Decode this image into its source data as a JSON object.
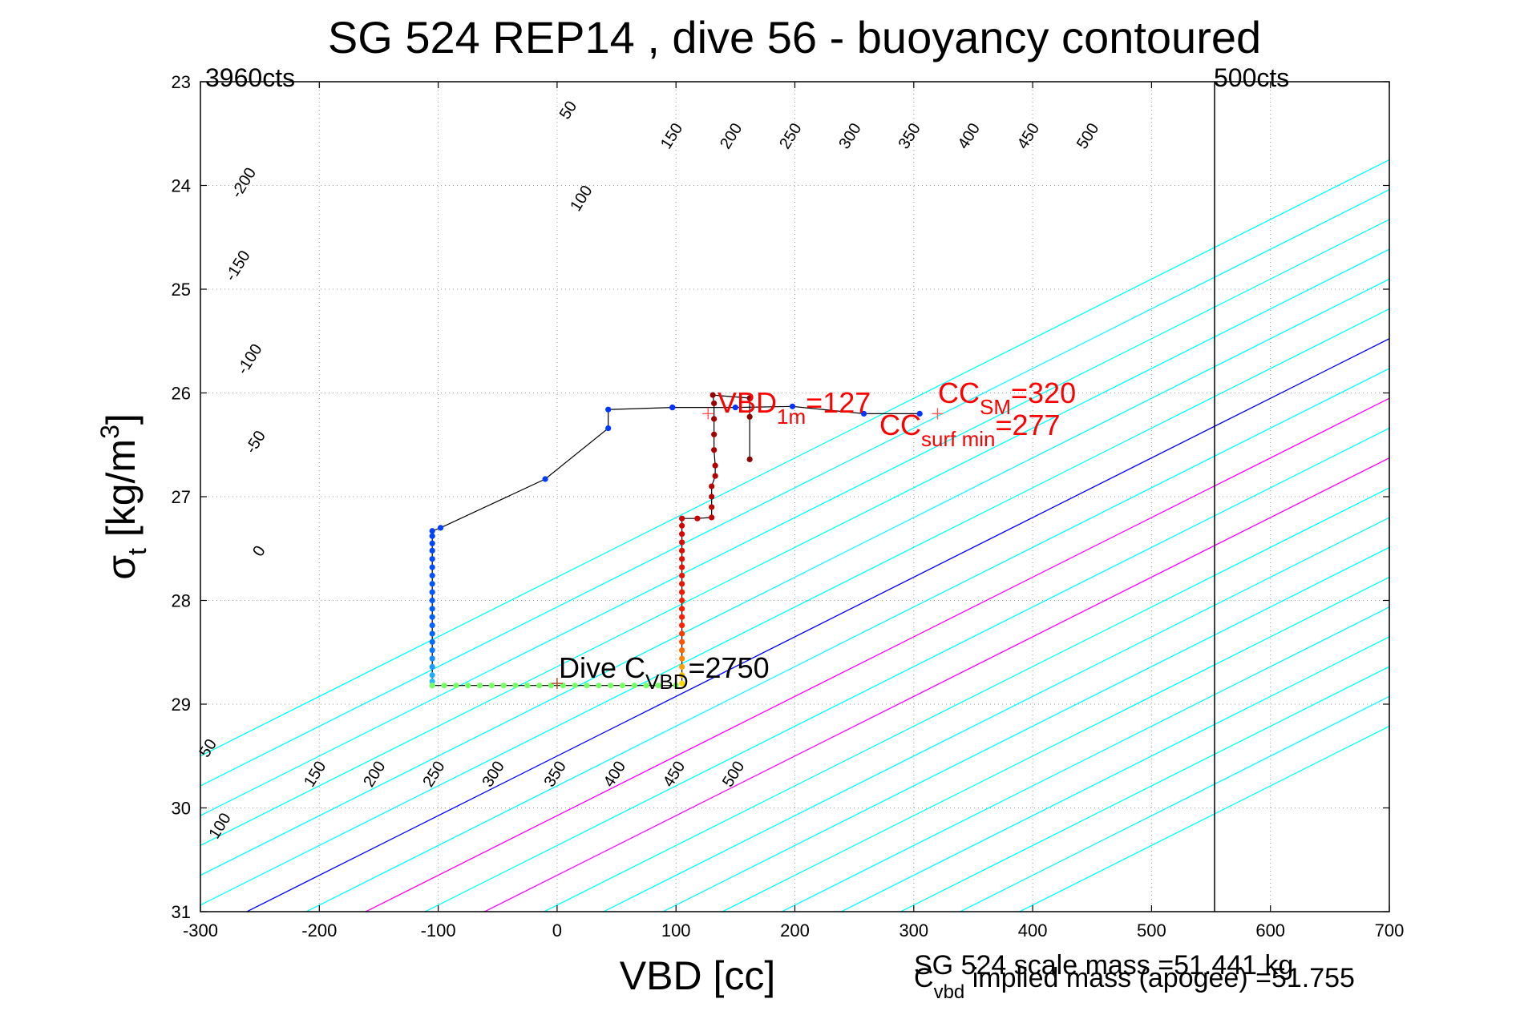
{
  "chart_data": {
    "type": "scatter",
    "title": "SG 524   REP14  , dive 56 - buoyancy contoured",
    "xlabel": "VBD [cc]",
    "ylabel_main": "σ",
    "ylabel_sub": "t",
    "ylabel_unit": " [kg/m",
    "ylabel_sup": "3",
    "ylabel_close": "]",
    "xlim": [
      -300,
      700
    ],
    "ylim": [
      23,
      31
    ],
    "y_reversed": true,
    "grid": true,
    "xticks": [
      -300,
      -200,
      -100,
      0,
      100,
      200,
      300,
      400,
      500,
      600,
      700
    ],
    "yticks": [
      23,
      24,
      25,
      26,
      27,
      28,
      29,
      30,
      31
    ],
    "contour_slope_cc_per_sigma": 174,
    "contour_lines": [
      {
        "value": -300,
        "color": "#00ffff"
      },
      {
        "value": -250,
        "color": "#00ffff"
      },
      {
        "value": -200,
        "color": "#00ffff"
      },
      {
        "value": -150,
        "color": "#00ffff"
      },
      {
        "value": -100,
        "color": "#00ffff"
      },
      {
        "value": -50,
        "color": "#00ffff"
      },
      {
        "value": 0,
        "color": "#0000ff"
      },
      {
        "value": 50,
        "color": "#00ffff"
      },
      {
        "value": 100,
        "color": "#ff00ff"
      },
      {
        "value": 150,
        "color": "#00ffff"
      },
      {
        "value": 200,
        "color": "#ff00ff"
      },
      {
        "value": 250,
        "color": "#00ffff"
      },
      {
        "value": 300,
        "color": "#00ffff"
      },
      {
        "value": 350,
        "color": "#00ffff"
      },
      {
        "value": 400,
        "color": "#00ffff"
      },
      {
        "value": 450,
        "color": "#00ffff"
      },
      {
        "value": 500,
        "color": "#00ffff"
      },
      {
        "value": 550,
        "color": "#00ffff"
      },
      {
        "value": 600,
        "color": "#00ffff"
      },
      {
        "value": 650,
        "color": "#00ffff"
      }
    ],
    "contour_labels_upper": [
      {
        "text": "-200",
        "x": -260,
        "y": 24.0
      },
      {
        "text": "-150",
        "x": -265,
        "y": 24.8
      },
      {
        "text": "-100",
        "x": -255,
        "y": 25.7
      },
      {
        "text": "-50",
        "x": -250,
        "y": 26.5
      },
      {
        "text": "0",
        "x": -247,
        "y": 27.55
      },
      {
        "text": "50",
        "x": 13,
        "y": 23.3
      },
      {
        "text": "100",
        "x": 24,
        "y": 24.15
      },
      {
        "text": "150",
        "x": 100,
        "y": 23.55
      },
      {
        "text": "200",
        "x": 150,
        "y": 23.55
      },
      {
        "text": "250",
        "x": 200,
        "y": 23.55
      },
      {
        "text": "300",
        "x": 250,
        "y": 23.55
      },
      {
        "text": "350",
        "x": 300,
        "y": 23.55
      },
      {
        "text": "400",
        "x": 350,
        "y": 23.55
      },
      {
        "text": "450",
        "x": 400,
        "y": 23.55
      },
      {
        "text": "500",
        "x": 450,
        "y": 23.55
      }
    ],
    "contour_labels_lower": [
      {
        "text": "50",
        "x": -290,
        "y": 29.45
      },
      {
        "text": "100",
        "x": -280,
        "y": 30.2
      },
      {
        "text": "150",
        "x": -200,
        "y": 29.7
      },
      {
        "text": "200",
        "x": -150,
        "y": 29.7
      },
      {
        "text": "250",
        "x": -100,
        "y": 29.7
      },
      {
        "text": "300",
        "x": -50,
        "y": 29.7
      },
      {
        "text": "350",
        "x": 2,
        "y": 29.7
      },
      {
        "text": "400",
        "x": 52,
        "y": 29.7
      },
      {
        "text": "450",
        "x": 102,
        "y": 29.7
      },
      {
        "text": "500",
        "x": 152,
        "y": 29.7
      }
    ],
    "vertical_lines": [
      {
        "x": 553,
        "color": "#000000"
      }
    ],
    "descent_track": [
      [
        97,
        26.14
      ],
      [
        43,
        26.16
      ],
      [
        43,
        26.34
      ],
      [
        -10,
        26.83
      ],
      [
        -98,
        27.3
      ],
      [
        -105,
        27.33
      ],
      [
        -105,
        27.38
      ],
      [
        -105,
        27.45
      ],
      [
        -105,
        27.52
      ],
      [
        -105,
        27.6
      ],
      [
        -105,
        27.68
      ],
      [
        -105,
        27.76
      ],
      [
        -105,
        27.84
      ],
      [
        -105,
        27.92
      ],
      [
        -105,
        28.0
      ],
      [
        -105,
        28.08
      ],
      [
        -105,
        28.16
      ],
      [
        -105,
        28.24
      ],
      [
        -105,
        28.32
      ],
      [
        -105,
        28.4
      ],
      [
        -105,
        28.48
      ],
      [
        -105,
        28.56
      ],
      [
        -105,
        28.64
      ],
      [
        -105,
        28.72
      ],
      [
        -105,
        28.78
      ],
      [
        -105,
        28.82
      ]
    ],
    "bottom_track": [
      [
        -105,
        28.82
      ],
      [
        -95,
        28.82
      ],
      [
        -85,
        28.82
      ],
      [
        -75,
        28.82
      ],
      [
        -65,
        28.82
      ],
      [
        -55,
        28.82
      ],
      [
        -45,
        28.82
      ],
      [
        -35,
        28.82
      ],
      [
        -25,
        28.82
      ],
      [
        -15,
        28.82
      ],
      [
        -5,
        28.82
      ],
      [
        5,
        28.82
      ],
      [
        15,
        28.82
      ],
      [
        25,
        28.82
      ],
      [
        35,
        28.82
      ],
      [
        45,
        28.82
      ],
      [
        55,
        28.82
      ],
      [
        65,
        28.82
      ],
      [
        75,
        28.82
      ],
      [
        85,
        28.82
      ],
      [
        100,
        28.82
      ]
    ],
    "ascent_track": [
      [
        105,
        28.8
      ],
      [
        105,
        28.72
      ],
      [
        105,
        28.64
      ],
      [
        105,
        28.56
      ],
      [
        105,
        28.48
      ],
      [
        105,
        28.4
      ],
      [
        105,
        28.32
      ],
      [
        105,
        28.24
      ],
      [
        105,
        28.16
      ],
      [
        105,
        28.08
      ],
      [
        105,
        28.0
      ],
      [
        105,
        27.92
      ],
      [
        105,
        27.84
      ],
      [
        105,
        27.76
      ],
      [
        105,
        27.68
      ],
      [
        105,
        27.6
      ],
      [
        105,
        27.52
      ],
      [
        105,
        27.44
      ],
      [
        105,
        27.36
      ],
      [
        105,
        27.28
      ],
      [
        105,
        27.21
      ],
      [
        118,
        27.21
      ],
      [
        130,
        27.2
      ],
      [
        130,
        27.1
      ],
      [
        130,
        27.0
      ],
      [
        130,
        26.9
      ],
      [
        133,
        26.8
      ],
      [
        133,
        26.7
      ],
      [
        132,
        26.55
      ],
      [
        132,
        26.4
      ],
      [
        132,
        26.25
      ],
      [
        132,
        26.1
      ],
      [
        131,
        26.02
      ],
      [
        162,
        26.05
      ],
      [
        162,
        26.23
      ],
      [
        162,
        26.64
      ]
    ],
    "surface_track": [
      [
        97,
        26.14
      ],
      [
        150,
        26.14
      ],
      [
        198,
        26.13
      ],
      [
        258,
        26.2
      ],
      [
        305,
        26.2
      ]
    ],
    "vbd_1m_marker": [
      127,
      26.2
    ],
    "cc_marker": [
      320,
      26.2
    ],
    "dive_cvbd_marker": [
      0,
      28.8
    ]
  },
  "annotations": {
    "left_counts": "3960cts",
    "right_counts": "500cts",
    "vbd1m_main": "VBD",
    "vbd1m_sub": "1m",
    "vbd1m_value": "=127",
    "ccsm_main": "CC",
    "ccsm_sub": "SM",
    "ccsm_value": "=320",
    "ccsurf_main": "CC",
    "ccsurf_sub": "surf min",
    "ccsurf_value": "=277",
    "dive_main": "Dive C",
    "dive_sub": "VBD",
    "dive_value": "=2750",
    "scale_mass": "SG 524 scale mass =51.441 kg",
    "implied_main": "C",
    "implied_sub": "vbd",
    "implied_text": " implied mass (apogee) =51.755"
  },
  "colors": {
    "cyan": "#00ffff",
    "blue": "#0000ff",
    "magenta": "#ff00ff",
    "annotation": "#ff0000",
    "descent_dots": "#0033ff",
    "ascent_dots": "#cc0000",
    "bottom_dots": "#66ff66"
  }
}
